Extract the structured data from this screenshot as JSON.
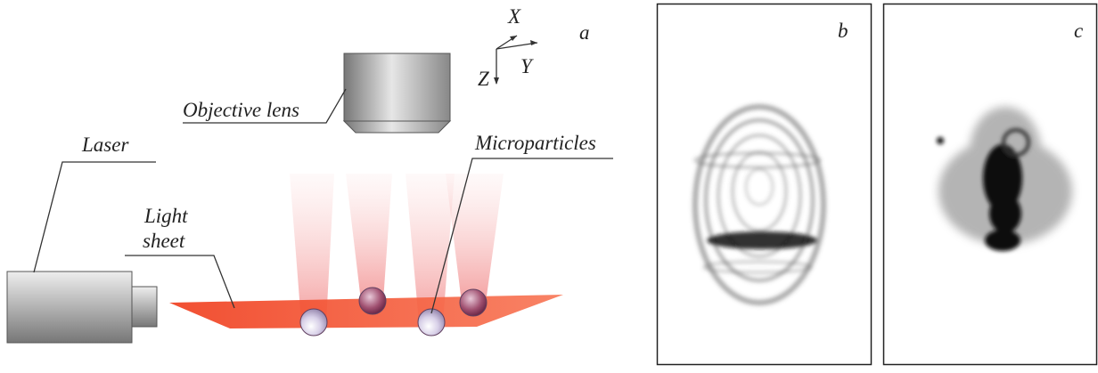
{
  "axes": {
    "x": "X",
    "y": "Y",
    "z": "Z"
  },
  "panels": {
    "a": "a",
    "b": "b",
    "c": "c"
  },
  "labels": {
    "objective_lens": "Objective lens",
    "laser": "Laser",
    "light_sheet": [
      "Light",
      "sheet"
    ],
    "microparticles": "Microparticles"
  }
}
